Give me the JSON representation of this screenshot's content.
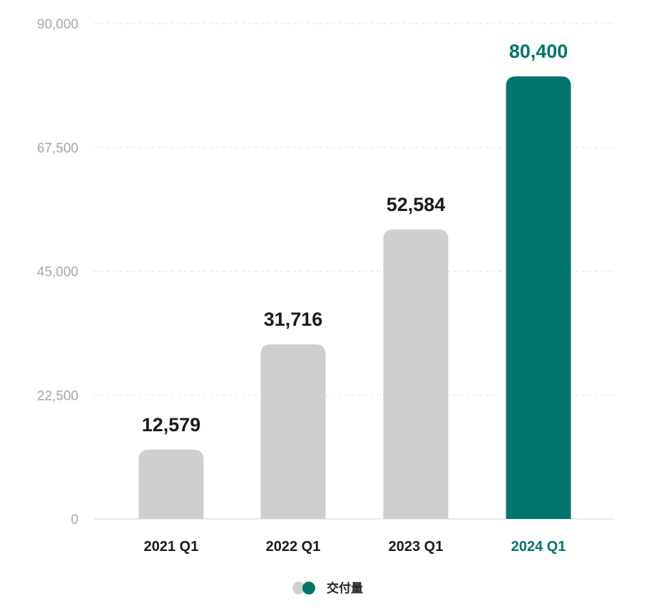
{
  "chart_data": {
    "type": "bar",
    "categories": [
      "2021 Q1",
      "2022 Q1",
      "2023 Q1",
      "2024 Q1"
    ],
    "series": [
      {
        "name": "交付量",
        "values": [
          12579,
          31716,
          52584,
          80400
        ],
        "value_labels": [
          "12,579",
          "31,716",
          "52,584",
          "80,400"
        ]
      }
    ],
    "highlight_index": 3,
    "yticks": [
      0,
      22500,
      45000,
      67500,
      90000
    ],
    "ytick_labels": [
      "0",
      "22,500",
      "45,000",
      "67,500",
      "90,000"
    ],
    "ylim": [
      0,
      90000
    ],
    "title": "",
    "xlabel": "",
    "ylabel": "",
    "grid": true,
    "legend_position": "bottom-center",
    "colors": {
      "bar": "#cfcfcf",
      "highlight": "#00756b",
      "grid": "#e2e2e2",
      "tick_text": "#a8a8a8",
      "label_text": "#1a1a1a"
    }
  }
}
